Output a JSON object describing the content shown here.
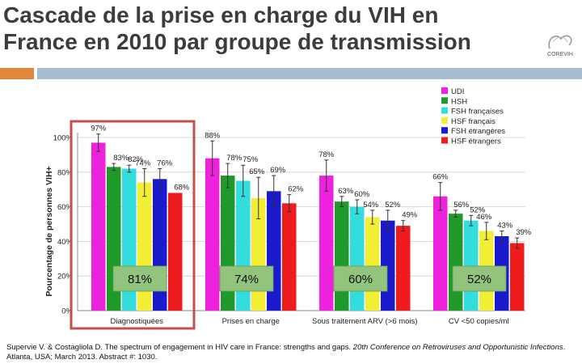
{
  "slide": {
    "title_line1": "Cascade de la prise en charge du VIH en",
    "title_line2": "France en 2010 par groupe de transmission",
    "logo_text": "COREVIH"
  },
  "footer": {
    "citation_main": "Supervie V. & Costagliola D. The spectrum of engagement in HIV care in France: strengths and gaps.",
    "citation_conf": "20th Conference on Retroviruses and Opportunistic Infections",
    "citation_tail": ". Atlanta, USA; March 2013. Abstract #: 1030."
  },
  "colors": {
    "orange_bar": "#e0873c",
    "blue_bar": "#a9bbd3",
    "highlight_border": "#c0504d",
    "highlight_box": "#93c47d"
  },
  "chart_data": {
    "type": "bar",
    "ylabel": "Pourcentage de personnes VIH+",
    "ylim": [
      0,
      100
    ],
    "yticks": [
      "0%",
      "20%",
      "40%",
      "60%",
      "80%",
      "100%"
    ],
    "categories": [
      "Diagnostiquées",
      "Prises en charge",
      "Sous traitement ARV (>6 mois)",
      "CV <50 copies/ml"
    ],
    "series": [
      {
        "name": "UDI",
        "color": "#ee22dd",
        "values": [
          97,
          88,
          78,
          66
        ],
        "labels": [
          "97%",
          "88%",
          "78%",
          "66%"
        ]
      },
      {
        "name": "HSH",
        "color": "#1f9a2a",
        "values": [
          83,
          78,
          63,
          56
        ],
        "labels": [
          "83%",
          "78%",
          "63%",
          "56%"
        ]
      },
      {
        "name": "FSH françaises",
        "color": "#33dddd",
        "values": [
          82,
          75,
          60,
          52
        ],
        "labels": [
          "82%",
          "75%",
          "60%",
          "52%"
        ]
      },
      {
        "name": "HSF français",
        "color": "#f2ee33",
        "values": [
          74,
          65,
          54,
          46
        ],
        "labels": [
          "74%",
          "65%",
          "54%",
          "46%"
        ]
      },
      {
        "name": "FSH étrangères",
        "color": "#1a1acc",
        "values": [
          76,
          69,
          52,
          43
        ],
        "labels": [
          "76%",
          "69%",
          "52%",
          "43%"
        ]
      },
      {
        "name": "HSF étrangers",
        "color": "#ee1c1c",
        "values": [
          68,
          62,
          49,
          39
        ],
        "labels": [
          "68%",
          "62%",
          "49%",
          "39%"
        ]
      }
    ],
    "overall": [
      "81%",
      "74%",
      "60%",
      "52%"
    ],
    "legend_position": "top-right"
  }
}
